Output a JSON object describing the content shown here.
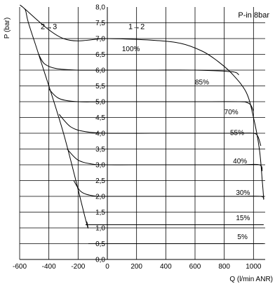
{
  "chart_data": {
    "type": "line",
    "title": "",
    "annotation": "P-in 8bar",
    "xlabel": "Q (l/min ANR)",
    "ylabel": "P (bar)",
    "xlim": [
      -600,
      1080
    ],
    "ylim": [
      0,
      8
    ],
    "x_ticks": [
      -600,
      -400,
      -200,
      0,
      200,
      400,
      600,
      800,
      1000
    ],
    "x_tick_labels": [
      "-600",
      "-400",
      "-200",
      "0",
      "200",
      "400",
      "600",
      "800",
      "1000"
    ],
    "y_ticks": [
      0,
      0.5,
      1,
      1.5,
      2,
      2.5,
      3,
      3.5,
      4,
      4.5,
      5,
      5.5,
      6,
      6.5,
      7,
      7.5,
      8
    ],
    "y_tick_labels": [
      "0,0",
      "0,5",
      "1,0",
      "1,5",
      "2,0",
      "2,5",
      "3,0",
      "3,5",
      "4,0",
      "4,5",
      "5,0",
      "5,5",
      "6,0",
      "6,5",
      "7,0",
      "7,5",
      "8,0"
    ],
    "regions": [
      {
        "label": "2→3",
        "x": -400,
        "y": 7.3
      },
      {
        "label": "1→2",
        "x": 200,
        "y": 7.3
      }
    ],
    "grid": true,
    "series": [
      {
        "name": "100%",
        "label_at": [
          100,
          6.6
        ],
        "x": [
          -140,
          -145,
          -300,
          -470,
          -540,
          -560,
          -580,
          -300,
          0,
          300,
          500,
          650,
          750,
          850,
          950,
          1000,
          1040,
          1060,
          1070
        ],
        "y": [
          1.2,
          1.2,
          4.0,
          6.5,
          7.5,
          7.9,
          8.0,
          7.0,
          7.0,
          6.95,
          6.85,
          6.6,
          6.3,
          5.9,
          5.3,
          4.5,
          3.5,
          2.5,
          1.9
        ]
      },
      {
        "name": "85%",
        "label_at": [
          600,
          5.55
        ],
        "x": [
          -470,
          -430,
          -350,
          -200,
          0,
          300,
          600,
          850,
          900
        ],
        "y": [
          6.5,
          6.2,
          6.05,
          6.0,
          6.0,
          6.0,
          6.0,
          5.95,
          5.85
        ]
      },
      {
        "name": "70%",
        "label_at": [
          800,
          4.6
        ],
        "x": [
          -400,
          -330,
          -200,
          0,
          300,
          600,
          900,
          950,
          980,
          1000
        ],
        "y": [
          5.4,
          5.1,
          5.0,
          5.0,
          5.0,
          5.0,
          5.0,
          4.98,
          4.9,
          4.7
        ]
      },
      {
        "name": "55%",
        "label_at": [
          840,
          3.95
        ],
        "x": [
          -330,
          -250,
          -150,
          0,
          300,
          600,
          900,
          1000,
          1030,
          1050
        ],
        "y": [
          4.6,
          4.2,
          4.05,
          4.0,
          4.0,
          4.0,
          4.0,
          4.0,
          3.9,
          3.6
        ]
      },
      {
        "name": "40%",
        "label_at": [
          860,
          3.05
        ],
        "x": [
          -275,
          -200,
          -100,
          0,
          300,
          600,
          900,
          1040,
          1060
        ],
        "y": [
          3.5,
          3.15,
          3.02,
          3.0,
          3.0,
          3.0,
          3.0,
          3.0,
          2.8
        ]
      },
      {
        "name": "30%",
        "label_at": [
          880,
          2.05
        ],
        "x": [
          -230,
          -180,
          -100,
          0,
          300,
          600,
          900,
          1050,
          1070
        ],
        "y": [
          2.5,
          2.15,
          2.02,
          2.0,
          2.0,
          2.0,
          2.0,
          2.0,
          1.9
        ]
      },
      {
        "name": "15%",
        "label_at": [
          880,
          1.25
        ],
        "x": [
          -150,
          -120,
          0,
          300,
          600,
          900,
          1070
        ],
        "y": [
          1.1,
          1.1,
          1.1,
          1.1,
          1.1,
          1.1,
          1.1
        ]
      },
      {
        "name": "5%",
        "label_at": [
          890,
          0.65
        ],
        "x": [
          -130,
          0,
          300,
          600,
          900,
          1070
        ],
        "y": [
          0.5,
          0.5,
          0.5,
          0.5,
          0.5,
          0.5
        ]
      }
    ]
  }
}
